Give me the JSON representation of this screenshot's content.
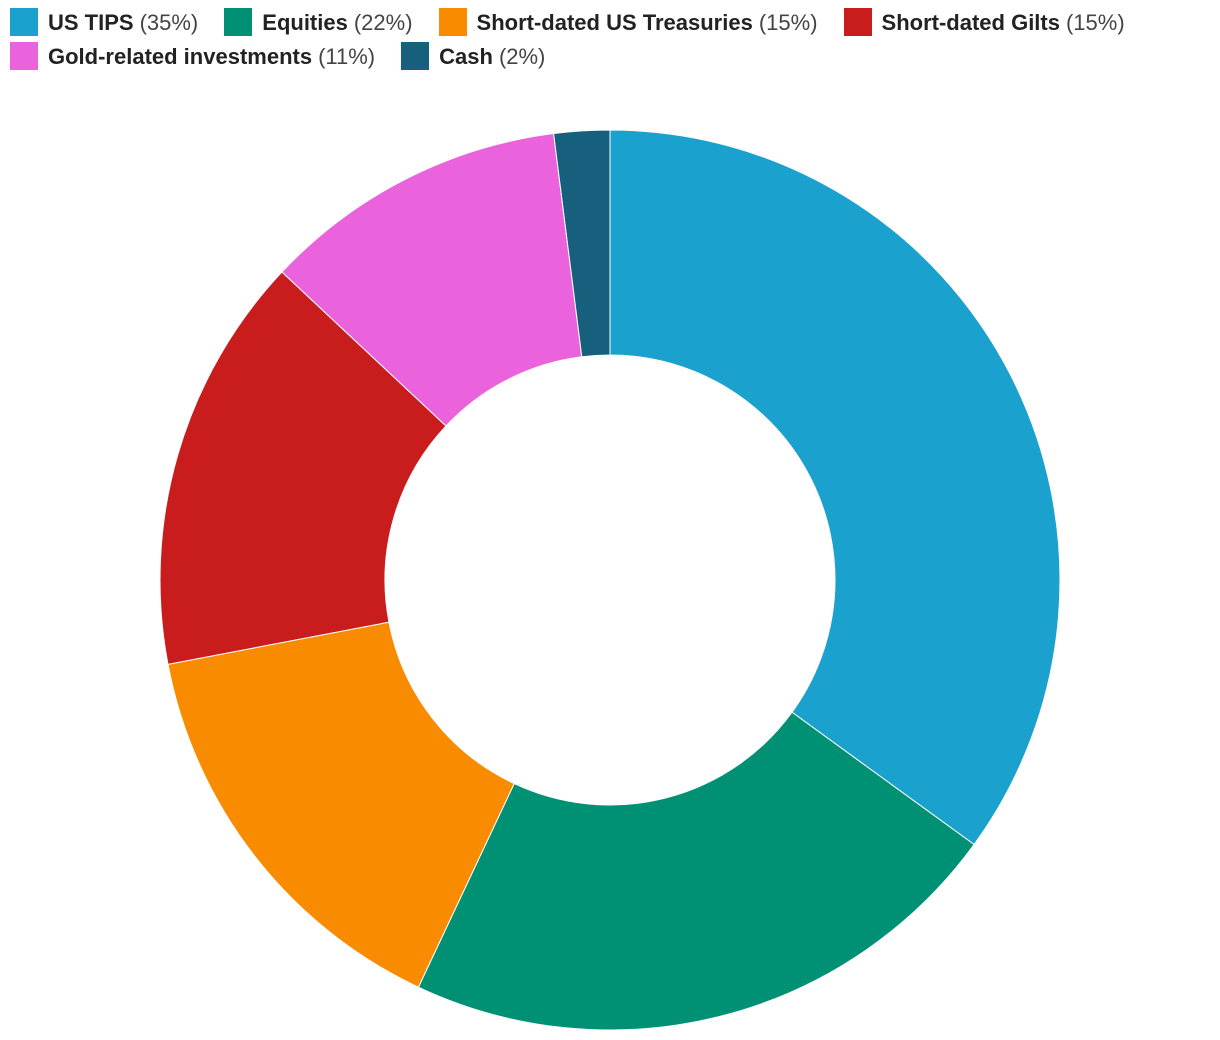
{
  "chart_data": {
    "type": "donut",
    "categories": [
      "US TIPS",
      "Equities",
      "Short-dated US Treasuries",
      "Short-dated Gilts",
      "Gold-related investments",
      "Cash"
    ],
    "values": [
      35,
      22,
      15,
      15,
      11,
      2
    ],
    "value_labels": [
      "(35%)",
      "(22%)",
      "(15%)",
      "(15%)",
      "(11%)",
      "(2%)"
    ],
    "colors": [
      "#1ba1ce",
      "#009175",
      "#f98b00",
      "#c91d1d",
      "#eb62dd",
      "#16607e"
    ]
  }
}
